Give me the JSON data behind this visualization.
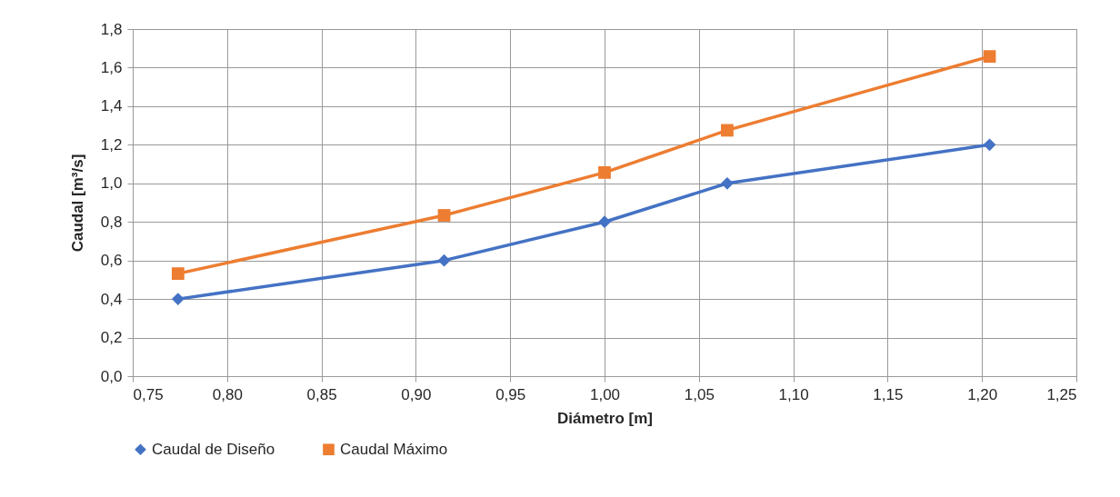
{
  "chart_data": {
    "type": "line",
    "xlabel": "Diámetro [m]",
    "ylabel": "Caudal [m³/s]",
    "x": [
      0.774,
      0.915,
      1.0,
      1.065,
      1.204
    ],
    "series": [
      {
        "name": "Caudal de Diseño",
        "color": "#4472c4",
        "marker": "diamond",
        "values": [
          0.4,
          0.6,
          0.8,
          1.0,
          1.2
        ]
      },
      {
        "name": "Caudal Máximo",
        "color": "#ed7d31",
        "marker": "square",
        "values": [
          0.532,
          0.834,
          1.056,
          1.275,
          1.658
        ]
      }
    ],
    "xlim": [
      0.75,
      1.25
    ],
    "xticks": [
      {
        "value": 0.75,
        "label": "0,75"
      },
      {
        "value": 0.8,
        "label": "0,80"
      },
      {
        "value": 0.85,
        "label": "0,85"
      },
      {
        "value": 0.9,
        "label": "0,90"
      },
      {
        "value": 0.95,
        "label": "0,95"
      },
      {
        "value": 1.0,
        "label": "1,00"
      },
      {
        "value": 1.05,
        "label": "1,05"
      },
      {
        "value": 1.1,
        "label": "1,10"
      },
      {
        "value": 1.15,
        "label": "1,15"
      },
      {
        "value": 1.2,
        "label": "1,20"
      },
      {
        "value": 1.25,
        "label": "1,25"
      }
    ],
    "ylim": [
      0,
      1.8
    ],
    "yticks": [
      {
        "value": 0,
        "label": "0,0"
      },
      {
        "value": 0.2,
        "label": "0,2"
      },
      {
        "value": 0.4,
        "label": "0,4"
      },
      {
        "value": 0.6,
        "label": "0,6"
      },
      {
        "value": 0.8,
        "label": "0,8"
      },
      {
        "value": 1.0,
        "label": "1,0"
      },
      {
        "value": 1.2,
        "label": "1,2"
      },
      {
        "value": 1.4,
        "label": "1,4"
      },
      {
        "value": 1.6,
        "label": "1,6"
      },
      {
        "value": 1.8,
        "label": "1,8"
      }
    ],
    "grid": true,
    "legend": "bottom",
    "line_style": "solid"
  }
}
